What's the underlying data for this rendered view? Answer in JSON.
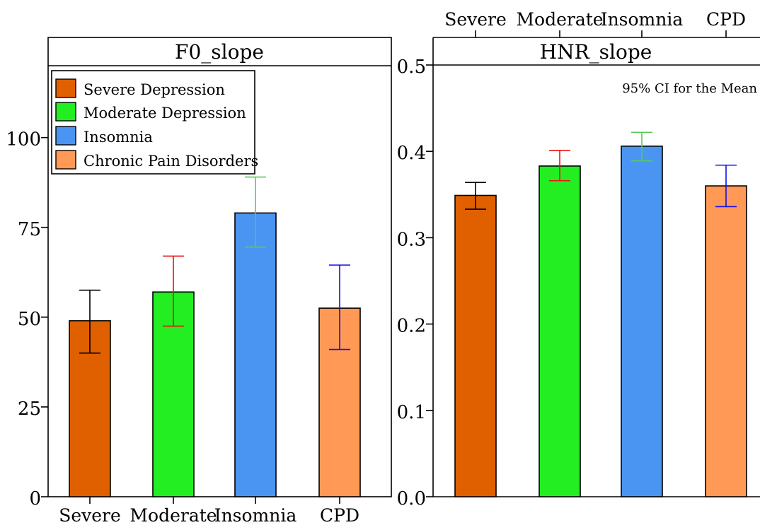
{
  "chart_data": [
    {
      "type": "bar",
      "title": "F0_slope",
      "categories": [
        "Severe",
        "Moderate",
        "Insomnia",
        "CPD"
      ],
      "values": [
        49,
        57,
        79,
        52.5
      ],
      "error_bars": [
        [
          40,
          57.5
        ],
        [
          47.5,
          67
        ],
        [
          69.5,
          89
        ],
        [
          41,
          64.5
        ]
      ],
      "colors": [
        "#E06000",
        "#22EE22",
        "#4A95F2",
        "#FF9955"
      ],
      "error_bar_colors": [
        "#000000",
        "#EE1111",
        "#55CC55",
        "#1111EE"
      ],
      "ylim": [
        0,
        120
      ],
      "yticks": [
        "0",
        "25",
        "50",
        "75",
        "100"
      ],
      "legend": {
        "placement": "top-left",
        "entries": [
          "Severe Depression",
          "Moderate Depression",
          "Insomnia",
          "Chronic Pain Disorders"
        ]
      }
    },
    {
      "type": "bar",
      "title": "HNR_slope",
      "categories": [
        "Severe",
        "Moderate",
        "Insomnia",
        "CPD"
      ],
      "values": [
        0.349,
        0.383,
        0.406,
        0.36
      ],
      "error_bars": [
        [
          0.333,
          0.364
        ],
        [
          0.366,
          0.401
        ],
        [
          0.389,
          0.422
        ],
        [
          0.336,
          0.384
        ]
      ],
      "colors": [
        "#E06000",
        "#22EE22",
        "#4A95F2",
        "#FF9955"
      ],
      "error_bar_colors": [
        "#000000",
        "#EE1111",
        "#55CC55",
        "#1111EE"
      ],
      "ylim": [
        0,
        0.5
      ],
      "yticks": [
        "0.0",
        "0.1",
        "0.2",
        "0.3",
        "0.4",
        "0.5"
      ],
      "annotation": "95% CI for the Mean"
    }
  ]
}
